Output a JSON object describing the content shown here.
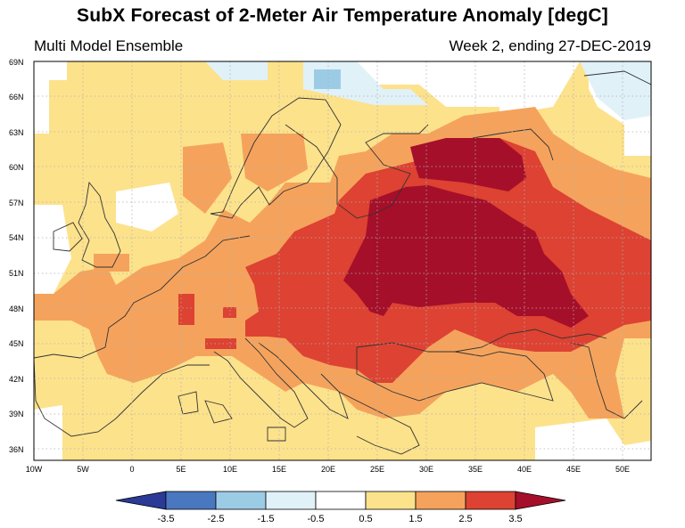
{
  "header": {
    "title": "SubX Forecast of 2-Meter Air Temperature Anomaly [degC]",
    "model": "Multi Model Ensemble",
    "period": "Week 2, ending 27-DEC-2019"
  },
  "map": {
    "lon_range": [
      -10,
      53
    ],
    "lat_range": [
      35,
      69
    ],
    "lat_ticks": [
      "36N",
      "39N",
      "42N",
      "45N",
      "48N",
      "51N",
      "54N",
      "57N",
      "60N",
      "63N",
      "66N",
      "69N"
    ],
    "lon_ticks": [
      "10W",
      "5W",
      "0",
      "5E",
      "10E",
      "15E",
      "20E",
      "25E",
      "30E",
      "35E",
      "40E",
      "45E",
      "50E"
    ],
    "grid_style": "dotted",
    "anomaly_regions": [
      {
        "level": 1.5,
        "desc": "broad warm anomaly over Europe"
      },
      {
        "level": 2.5,
        "desc": "central and eastern Europe"
      },
      {
        "level": 3.5,
        "desc": "strong anomaly Ukraine / western Russia"
      },
      {
        "level": -0.5,
        "desc": "Scandinavia / northern seas"
      },
      {
        "level": -1.5,
        "desc": "northern Scandinavia"
      }
    ]
  },
  "colorbar": {
    "labels": [
      "-3.5",
      "-2.5",
      "-1.5",
      "-0.5",
      "0.5",
      "1.5",
      "2.5",
      "3.5"
    ],
    "colors": [
      "#2b3a96",
      "#4a78c0",
      "#9ccbe6",
      "#e0f1f8",
      "#ffffff",
      "#fde28c",
      "#f5a35c",
      "#dd4232",
      "#a50f2a"
    ]
  }
}
